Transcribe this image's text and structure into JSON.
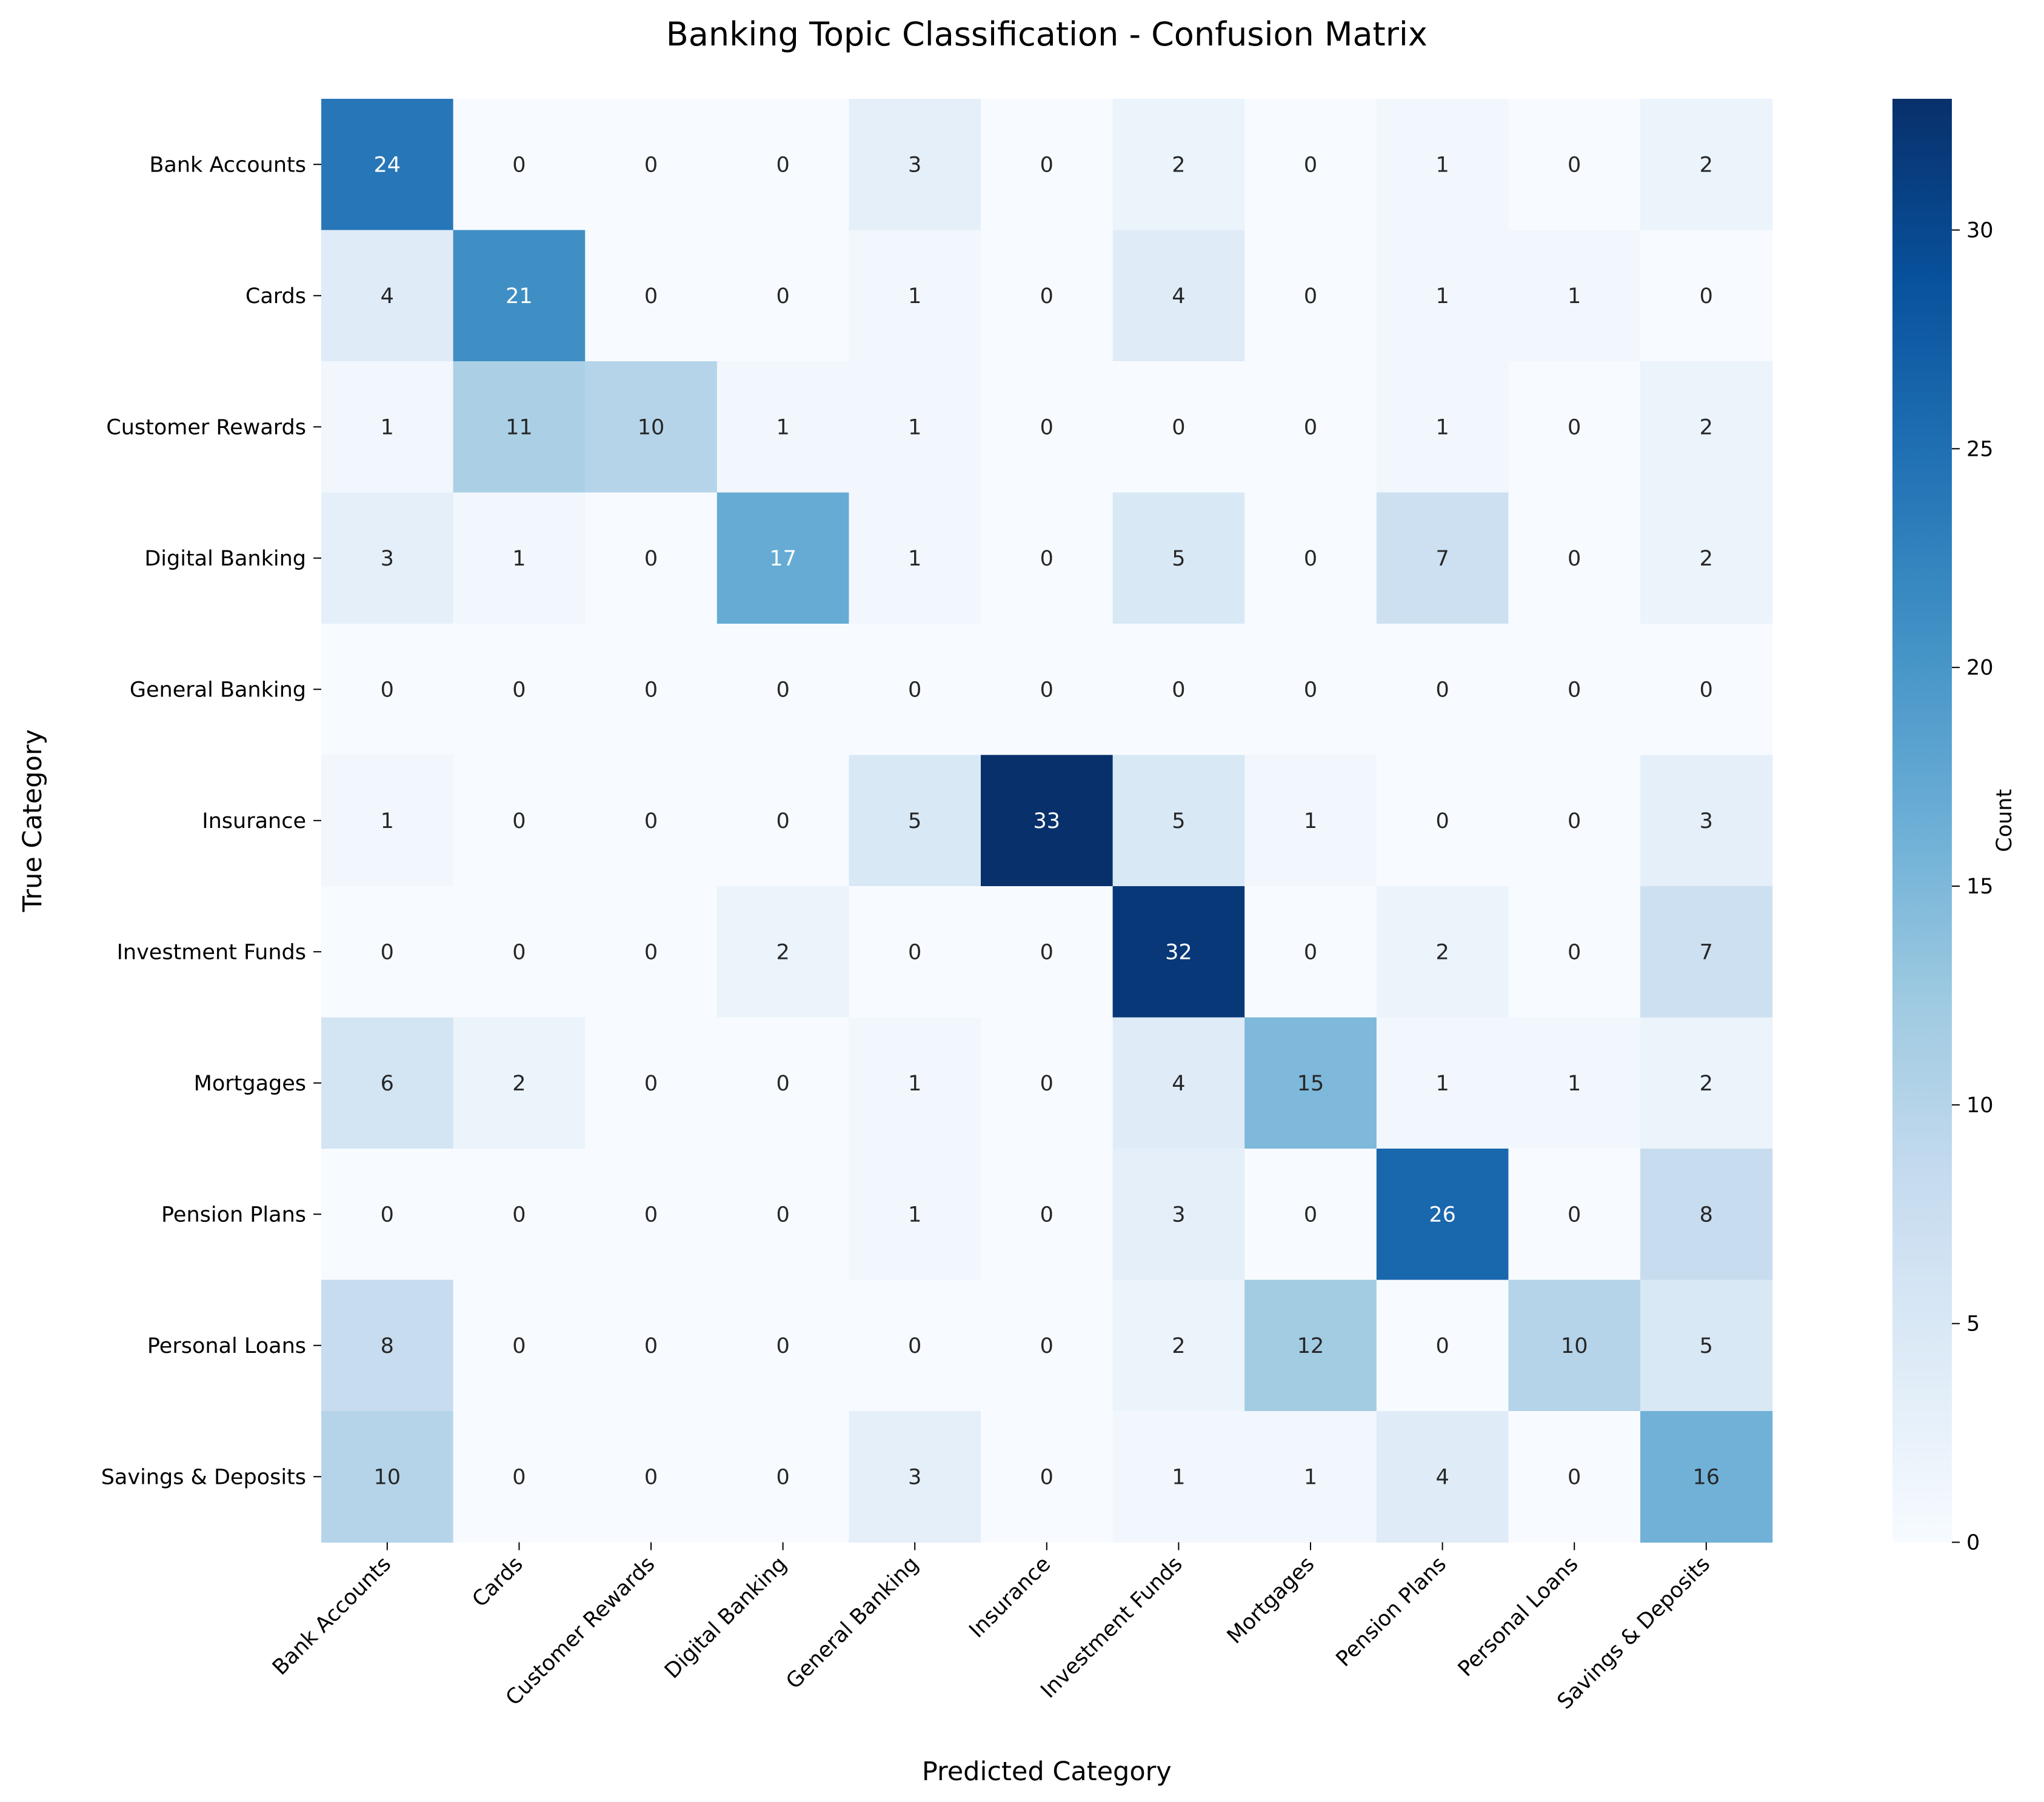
{
  "chart_data": {
    "type": "heatmap",
    "title": "Banking Topic Classification - Confusion Matrix",
    "xlabel": "Predicted Category",
    "ylabel": "True Category",
    "colorbar_label": "Count",
    "colormap": "Blues",
    "vmin": 0,
    "vmax": 33,
    "colorbar_ticks": [
      0,
      5,
      10,
      15,
      20,
      25,
      30
    ],
    "row_labels": [
      "Bank Accounts",
      "Cards",
      "Customer Rewards",
      "Digital Banking",
      "General Banking",
      "Insurance",
      "Investment Funds",
      "Mortgages",
      "Pension Plans",
      "Personal Loans",
      "Savings & Deposits"
    ],
    "col_labels": [
      "Bank Accounts",
      "Cards",
      "Customer Rewards",
      "Digital Banking",
      "General Banking",
      "Insurance",
      "Investment Funds",
      "Mortgages",
      "Pension Plans",
      "Personal Loans",
      "Savings & Deposits"
    ],
    "matrix": [
      [
        24,
        0,
        0,
        0,
        3,
        0,
        2,
        0,
        1,
        0,
        2
      ],
      [
        4,
        21,
        0,
        0,
        1,
        0,
        4,
        0,
        1,
        1,
        0
      ],
      [
        1,
        11,
        10,
        1,
        1,
        0,
        0,
        0,
        1,
        0,
        2
      ],
      [
        3,
        1,
        0,
        17,
        1,
        0,
        5,
        0,
        7,
        0,
        2
      ],
      [
        0,
        0,
        0,
        0,
        0,
        0,
        0,
        0,
        0,
        0,
        0
      ],
      [
        1,
        0,
        0,
        0,
        5,
        33,
        5,
        1,
        0,
        0,
        3
      ],
      [
        0,
        0,
        0,
        2,
        0,
        0,
        32,
        0,
        2,
        0,
        7
      ],
      [
        6,
        2,
        0,
        0,
        1,
        0,
        4,
        15,
        1,
        1,
        2
      ],
      [
        0,
        0,
        0,
        0,
        1,
        0,
        3,
        0,
        26,
        0,
        8
      ],
      [
        8,
        0,
        0,
        0,
        0,
        0,
        2,
        12,
        0,
        10,
        5
      ],
      [
        10,
        0,
        0,
        0,
        3,
        0,
        1,
        1,
        4,
        0,
        16
      ]
    ]
  }
}
